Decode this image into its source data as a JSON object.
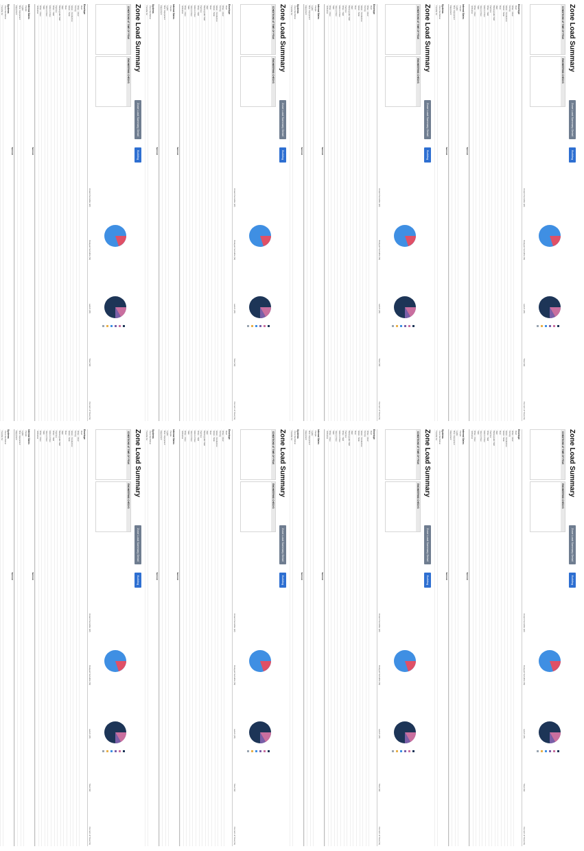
{
  "report_title": "Zone Load Summary",
  "tags": [
    "Zone Load Summary Detail",
    "Building"
  ],
  "info_headers": [
    "CONDITIONS AT TIME OF PEAK",
    "ENGINEERING CHECKS"
  ],
  "info_lines": [
    "",
    "",
    "",
    "",
    "",
    "",
    ""
  ],
  "chart_titles": [
    "",
    ""
  ],
  "legend_items": [
    "",
    "",
    "",
    "",
    "",
    ""
  ],
  "colors": {
    "pie_blue": "#3f8fe3",
    "pie_red": "#e05066",
    "donut_navy": "#1d3557",
    "donut_pink": "#c96f9f",
    "donut_purple": "#7a5fa8",
    "tag_gray": "#6f7d90",
    "tag_blue": "#2e6fd1"
  },
  "columns": [
    "",
    "Instant Sensible (W)",
    "Delayed Sensible (W)",
    "Latent (W)",
    "Total (W)",
    "Percent of Total (%)"
  ],
  "sections": [
    {
      "name": "Envelope",
      "rows": [
        "Roof",
        "Other - Roof",
        "Ceiling",
        "Glass - Conduction",
        "Glass - Solar",
        "Door",
        "Wall",
        "Below-grade Wall",
        "Partition",
        "Other - Wall",
        "Exterior Floor",
        "Interior Floor",
        "Slab",
        "Other - Floor",
        "Infiltration"
      ]
    },
    {
      "name": "Internal Gains",
      "rows": [
        "People",
        "Lights",
        "Misc. Equipment",
        "Equipment"
      ]
    },
    {
      "name": "Systems",
      "rows": [
        "Zone Ventilation",
        "Transfer Air",
        "DOAS Direct to Zone",
        "Return Air - Plenum",
        "Return Air - Direct",
        "Fan Heat",
        "Heat Recovery",
        "Plenum",
        "HVAC Equipment Loss"
      ]
    },
    {
      "name": "Total",
      "rows": [
        "Sizing Factor Adjustment",
        "Time Delay Correction"
      ]
    }
  ],
  "subtotal_label": "Subtotal",
  "grand_total_label": "Grand Total",
  "panels": [
    {
      "id": 1,
      "grand": [
        "",
        "",
        "",
        "",
        ""
      ]
    },
    {
      "id": 2,
      "grand": [
        "",
        "",
        "",
        "",
        ""
      ]
    },
    {
      "id": 3,
      "grand": [
        "",
        "",
        "",
        "",
        ""
      ]
    },
    {
      "id": 4,
      "grand": [
        "",
        "",
        "",
        "",
        ""
      ]
    },
    {
      "id": 5,
      "grand": [
        "",
        "",
        "",
        "",
        ""
      ]
    },
    {
      "id": 6,
      "grand": [
        "",
        "",
        "",
        "",
        ""
      ]
    },
    {
      "id": 7,
      "grand": [
        "",
        "",
        "",
        "",
        ""
      ]
    },
    {
      "id": 8,
      "grand": [
        "",
        "",
        "",
        "",
        ""
      ]
    }
  ]
}
